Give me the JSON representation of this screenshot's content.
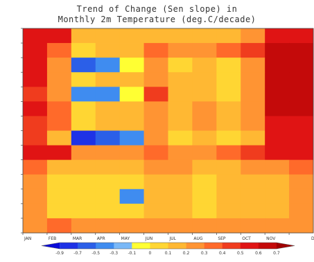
{
  "chart_data": {
    "type": "heatmap",
    "title_lines": [
      "Trend of Change (Sen slope) in",
      "Monthly 2m Temperature (deg.C/decade)"
    ],
    "x_tick_labels": [
      "JAN",
      "FEB",
      "MAR",
      "APR",
      "MAY",
      "JUN",
      "JUL",
      "AUG",
      "SEP",
      "OCT",
      "NOV",
      "D"
    ],
    "rows": 14,
    "columns": 12,
    "values": [
      [
        0.6,
        0.6,
        0.2,
        0.2,
        0.2,
        0.2,
        0.2,
        0.2,
        0.2,
        0.3,
        0.6,
        0.6
      ],
      [
        0.6,
        0.4,
        0.1,
        0.2,
        0.2,
        0.4,
        0.3,
        0.3,
        0.4,
        0.5,
        0.7,
        0.7
      ],
      [
        0.6,
        0.3,
        -0.5,
        -0.3,
        0.0,
        0.3,
        0.1,
        0.2,
        0.1,
        0.3,
        0.7,
        0.7
      ],
      [
        0.6,
        0.3,
        0.1,
        0.2,
        0.2,
        0.3,
        0.2,
        0.2,
        0.1,
        0.3,
        0.7,
        0.7
      ],
      [
        0.5,
        0.3,
        -0.3,
        -0.3,
        0.0,
        0.5,
        0.2,
        0.2,
        0.1,
        0.3,
        0.7,
        0.7
      ],
      [
        0.6,
        0.4,
        0.1,
        0.2,
        0.2,
        0.3,
        0.2,
        0.3,
        0.2,
        0.3,
        0.7,
        0.7
      ],
      [
        0.5,
        0.4,
        0.1,
        0.2,
        0.2,
        0.3,
        0.2,
        0.3,
        0.2,
        0.3,
        0.6,
        0.6
      ],
      [
        0.5,
        0.2,
        -0.7,
        -0.5,
        -0.3,
        0.3,
        0.1,
        0.2,
        0.1,
        0.2,
        0.6,
        0.6
      ],
      [
        0.6,
        0.6,
        0.3,
        0.3,
        0.3,
        0.4,
        0.3,
        0.3,
        0.4,
        0.5,
        0.6,
        0.6
      ],
      [
        0.4,
        0.2,
        0.2,
        0.2,
        0.2,
        0.3,
        0.3,
        0.2,
        0.2,
        0.3,
        0.3,
        0.4
      ],
      [
        0.3,
        0.1,
        0.1,
        0.1,
        0.1,
        0.2,
        0.2,
        0.1,
        0.2,
        0.2,
        0.2,
        0.3
      ],
      [
        0.3,
        0.1,
        0.1,
        0.1,
        -0.3,
        0.2,
        0.2,
        0.1,
        0.2,
        0.2,
        0.2,
        0.3
      ],
      [
        0.3,
        0.1,
        0.1,
        0.1,
        0.1,
        0.2,
        0.2,
        0.1,
        0.2,
        0.2,
        0.2,
        0.3
      ],
      [
        0.3,
        0.4,
        0.3,
        0.3,
        0.3,
        0.3,
        0.3,
        0.3,
        0.3,
        0.3,
        0.3,
        0.3
      ]
    ],
    "colorbar": {
      "tick_labels": [
        "-0.9",
        "-0.7",
        "-0.5",
        "-0.3",
        "-0.1",
        "0",
        "0.1",
        "0.2",
        "0.3",
        "0.4",
        "0.5",
        "0.6",
        "0.7"
      ],
      "colors": [
        "#0a0ad8",
        "#1e32e6",
        "#2b5fe8",
        "#3f8cf0",
        "#7ab8f7",
        "#ffff33",
        "#ffd633",
        "#ffb833",
        "#ff9433",
        "#ff6a2a",
        "#f03c1e",
        "#e01414",
        "#c40a0a",
        "#a00000"
      ]
    },
    "grid": false
  }
}
